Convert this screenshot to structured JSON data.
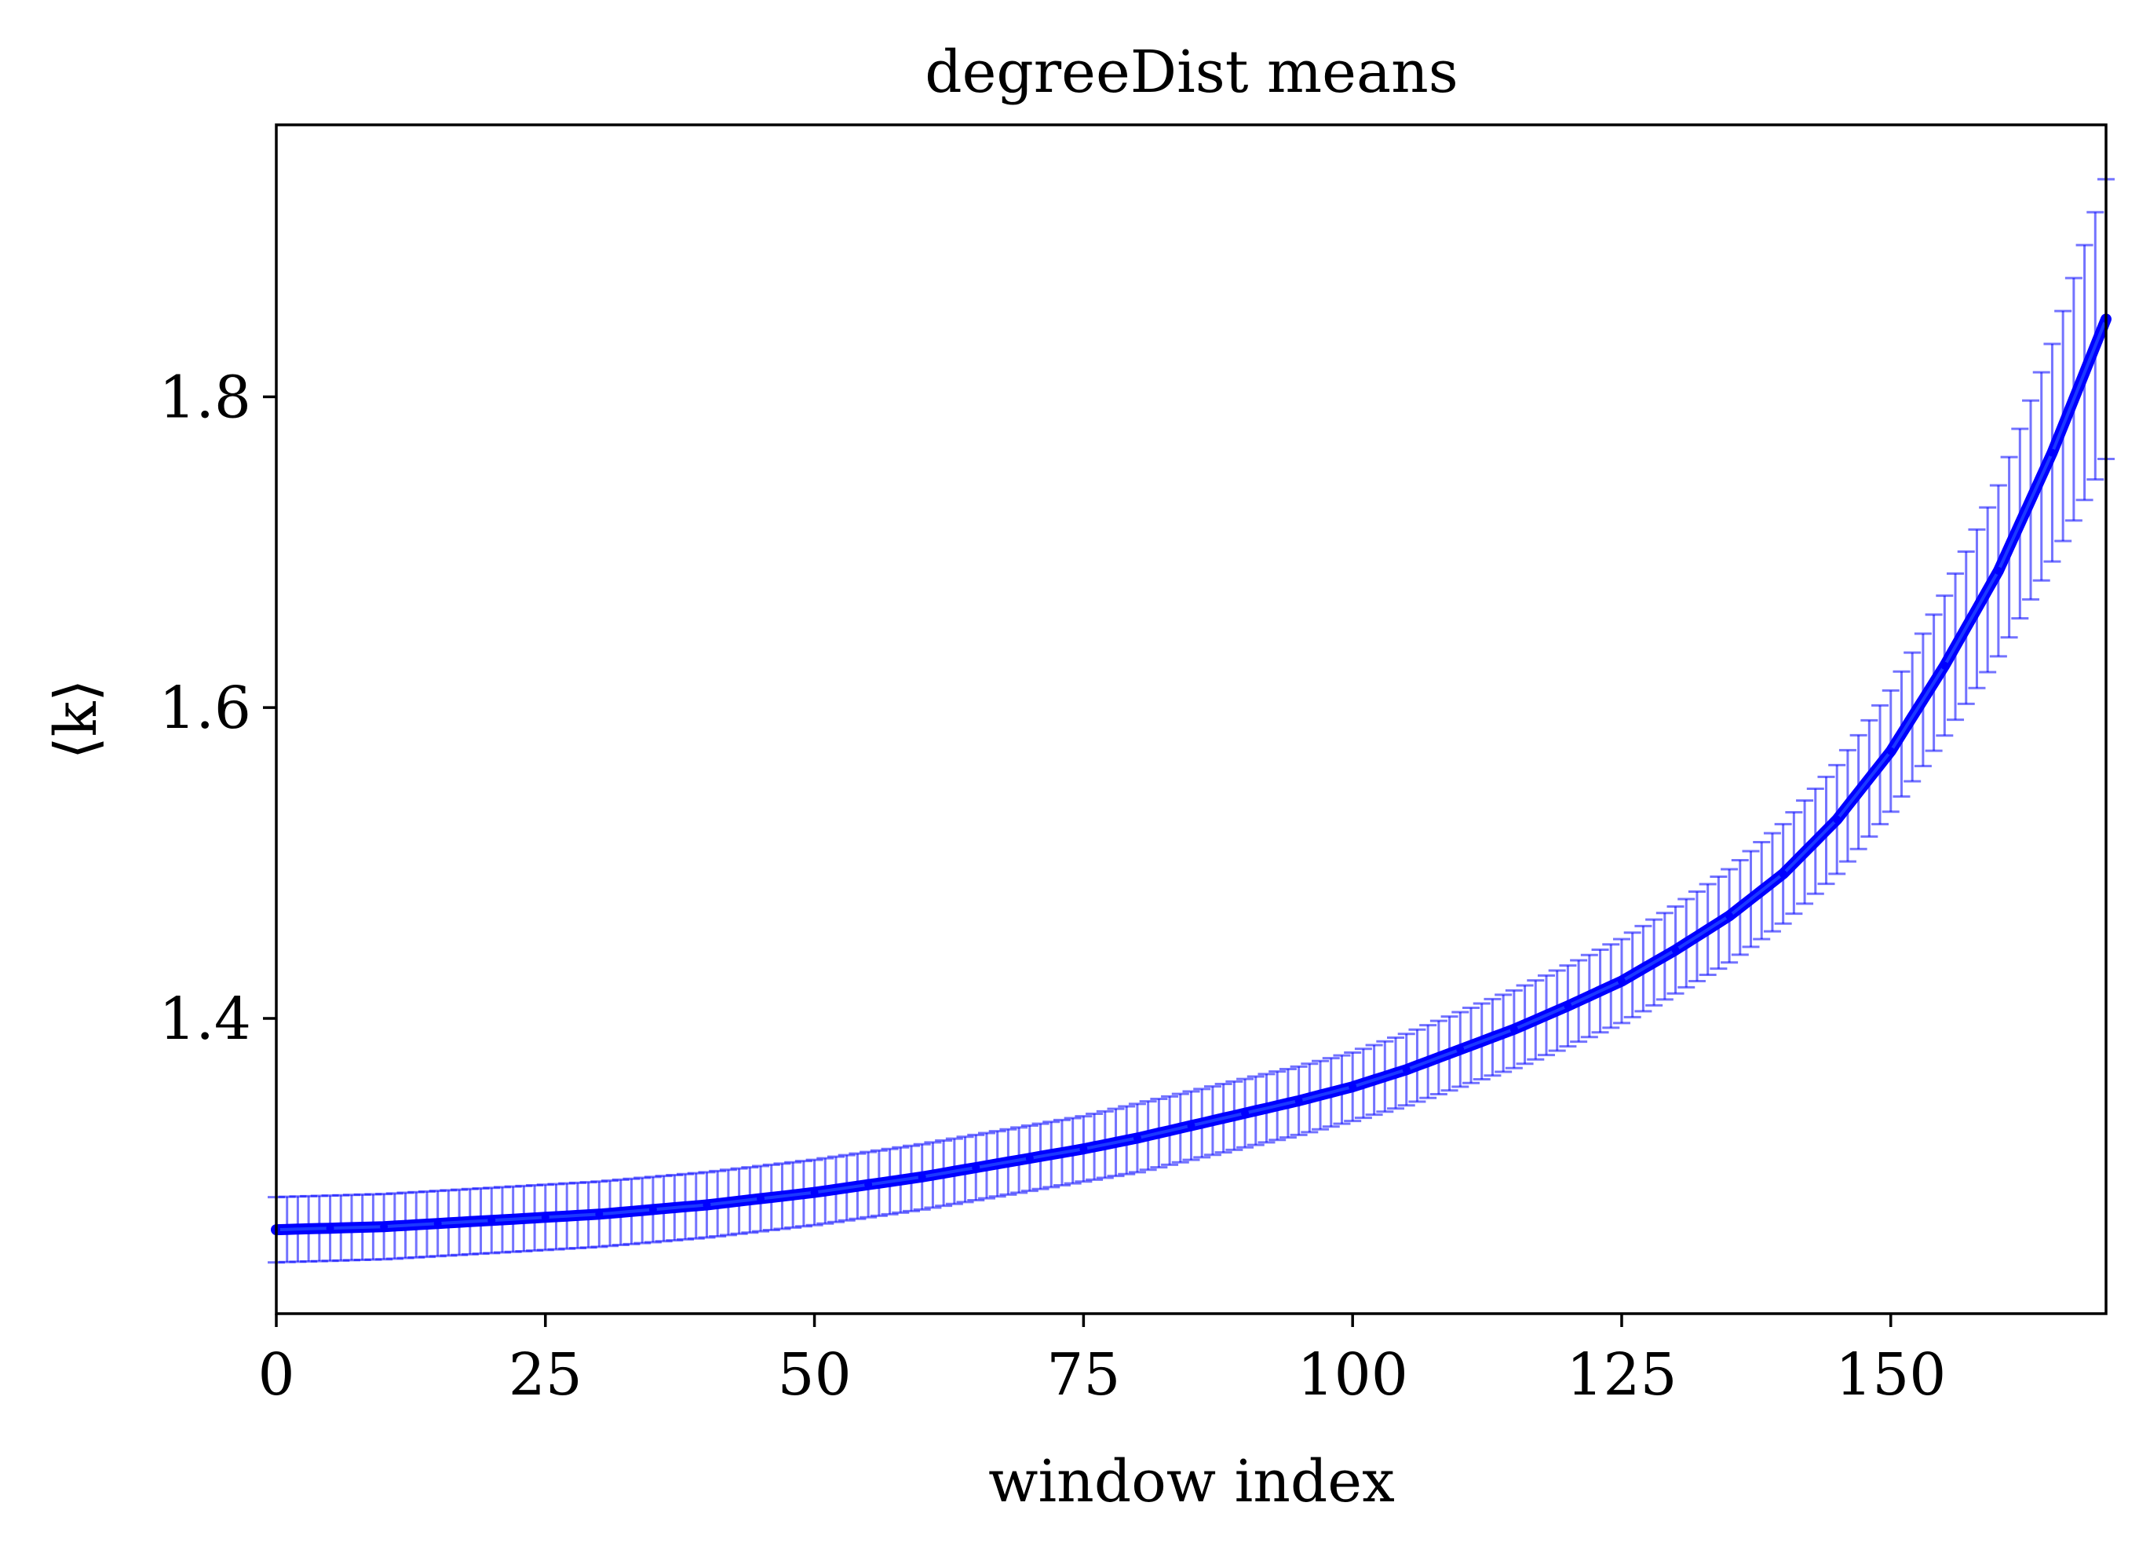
{
  "chart_data": {
    "type": "line",
    "title": "degreeDist means",
    "xlabel": "window index",
    "ylabel": "⟨k⟩",
    "xlim": [
      0,
      170
    ],
    "ylim": [
      1.21,
      1.975
    ],
    "x_ticks": [
      0,
      25,
      50,
      75,
      100,
      125,
      150
    ],
    "x_tick_labels": [
      "0",
      "25",
      "50",
      "75",
      "100",
      "125",
      "150"
    ],
    "y_ticks": [
      1.4,
      1.6,
      1.8
    ],
    "y_tick_labels": [
      "1.4",
      "1.6",
      "1.8"
    ],
    "grid": false,
    "legend": "none",
    "colors": {
      "line": "#0000ff",
      "errorbar": "#0000ff"
    },
    "series": [
      {
        "x": [
          0,
          5,
          10,
          15,
          20,
          25,
          30,
          35,
          40,
          45,
          50,
          55,
          60,
          65,
          70,
          75,
          80,
          85,
          90,
          95,
          100,
          105,
          110,
          115,
          120,
          125,
          130,
          135,
          140,
          145,
          150,
          155,
          160,
          165,
          170
        ],
        "values": [
          1.264,
          1.265,
          1.266,
          1.268,
          1.27,
          1.272,
          1.274,
          1.277,
          1.28,
          1.284,
          1.288,
          1.293,
          1.298,
          1.304,
          1.31,
          1.316,
          1.323,
          1.331,
          1.339,
          1.347,
          1.356,
          1.367,
          1.38,
          1.393,
          1.408,
          1.424,
          1.444,
          1.466,
          1.493,
          1.528,
          1.572,
          1.627,
          1.688,
          1.764,
          1.85
        ],
        "error": [
          0.021,
          0.021,
          0.021,
          0.021,
          0.021,
          0.021,
          0.021,
          0.021,
          0.021,
          0.021,
          0.021,
          0.021,
          0.021,
          0.021,
          0.021,
          0.021,
          0.022,
          0.022,
          0.022,
          0.022,
          0.022,
          0.023,
          0.024,
          0.025,
          0.026,
          0.027,
          0.028,
          0.03,
          0.032,
          0.035,
          0.039,
          0.045,
          0.055,
          0.07,
          0.09
        ]
      }
    ]
  }
}
